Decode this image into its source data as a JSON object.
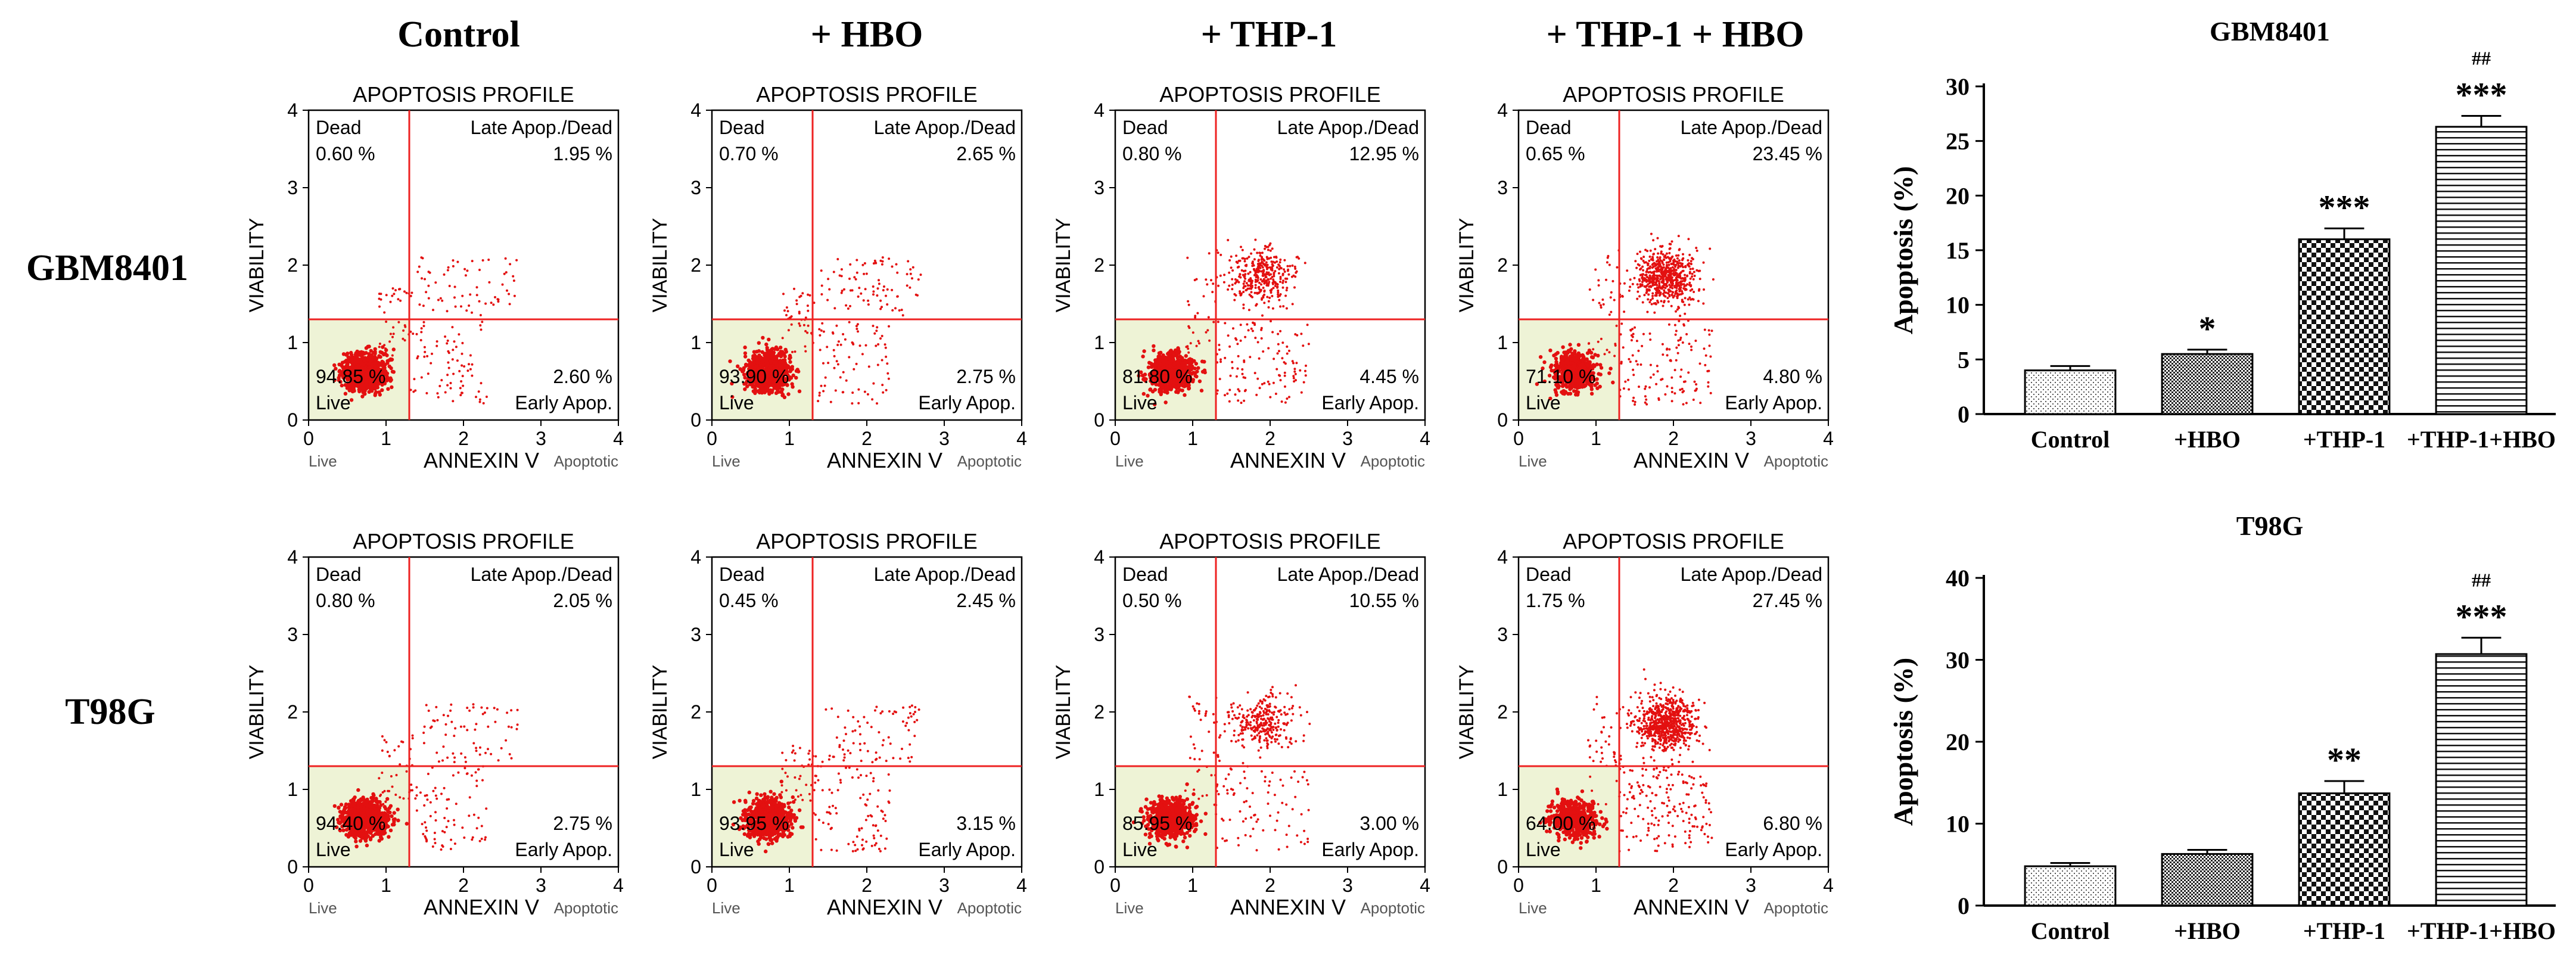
{
  "figure": {
    "column_headers": [
      "Control",
      "+ HBO",
      "+ THP-1",
      "+ THP-1 + HBO"
    ],
    "row_labels": [
      "GBM8401",
      "T98G"
    ]
  },
  "flow_labels": {
    "title": "APOPTOSIS PROFILE",
    "xlabel": "ANNEXIN V",
    "ylabel": "VIABILITY",
    "x_left": "Live",
    "x_right": "Apoptotic",
    "q_dead": "Dead",
    "q_late": "Late Apop./Dead",
    "q_live": "Live",
    "q_early": "Early Apop."
  },
  "chart_data": [
    {
      "type": "scatter",
      "title": "APOPTOSIS PROFILE",
      "xlabel": "ANNEXIN V",
      "ylabel": "VIABILITY",
      "xlim": [
        0,
        4
      ],
      "ylim": [
        0,
        4
      ],
      "xticks": [
        0,
        1,
        2,
        3,
        4
      ],
      "yticks": [
        0,
        1,
        2,
        3,
        4
      ],
      "gate": {
        "x": 1.3,
        "y": 1.3
      },
      "panels": [
        {
          "row": "GBM8401",
          "condition": "Control",
          "dead": "0.60 %",
          "late": "1.95 %",
          "live": "94.85 %",
          "early": "2.60 %"
        },
        {
          "row": "GBM8401",
          "condition": "+ HBO",
          "dead": "0.70 %",
          "late": "2.65 %",
          "live": "93.90 %",
          "early": "2.75 %"
        },
        {
          "row": "GBM8401",
          "condition": "+ THP-1",
          "dead": "0.80 %",
          "late": "12.95 %",
          "live": "81.80 %",
          "early": "4.45 %"
        },
        {
          "row": "GBM8401",
          "condition": "+ THP-1 + HBO",
          "dead": "0.65 %",
          "late": "23.45 %",
          "live": "71.10 %",
          "early": "4.80 %"
        },
        {
          "row": "T98G",
          "condition": "Control",
          "dead": "0.80 %",
          "late": "2.05 %",
          "live": "94.40 %",
          "early": "2.75 %"
        },
        {
          "row": "T98G",
          "condition": "+ HBO",
          "dead": "0.45 %",
          "late": "2.45 %",
          "live": "93.95 %",
          "early": "3.15 %"
        },
        {
          "row": "T98G",
          "condition": "+ THP-1",
          "dead": "0.50 %",
          "late": "10.55 %",
          "live": "85.95 %",
          "early": "3.00 %"
        },
        {
          "row": "T98G",
          "condition": "+ THP-1 + HBO",
          "dead": "1.75 %",
          "late": "27.45 %",
          "live": "64.00 %",
          "early": "6.80 %"
        }
      ]
    },
    {
      "type": "bar",
      "title": "GBM8401",
      "categories": [
        "Control",
        "+HBO",
        "+THP-1",
        "+THP-1+HBO"
      ],
      "values": [
        4.0,
        5.5,
        16.0,
        26.3
      ],
      "errors": [
        0.4,
        0.4,
        1.0,
        1.0
      ],
      "annotations": [
        "",
        "*",
        "***",
        "***"
      ],
      "annotations2": [
        "",
        "",
        "",
        "##"
      ],
      "xlabel": "",
      "ylabel": "Apoptosis (%)",
      "ylim": [
        0,
        30
      ],
      "yticks": [
        0,
        5,
        10,
        15,
        20,
        25,
        30
      ]
    },
    {
      "type": "bar",
      "title": "T98G",
      "categories": [
        "Control",
        "+HBO",
        "+THP-1",
        "+THP-1+HBO"
      ],
      "values": [
        4.8,
        6.3,
        13.7,
        30.7
      ],
      "errors": [
        0.4,
        0.5,
        1.5,
        2.0
      ],
      "annotations": [
        "",
        "",
        "**",
        "***"
      ],
      "annotations2": [
        "",
        "",
        "",
        "##"
      ],
      "xlabel": "",
      "ylabel": "Apoptosis (%)",
      "ylim": [
        0,
        40
      ],
      "yticks": [
        0,
        10,
        20,
        30,
        40
      ]
    }
  ]
}
